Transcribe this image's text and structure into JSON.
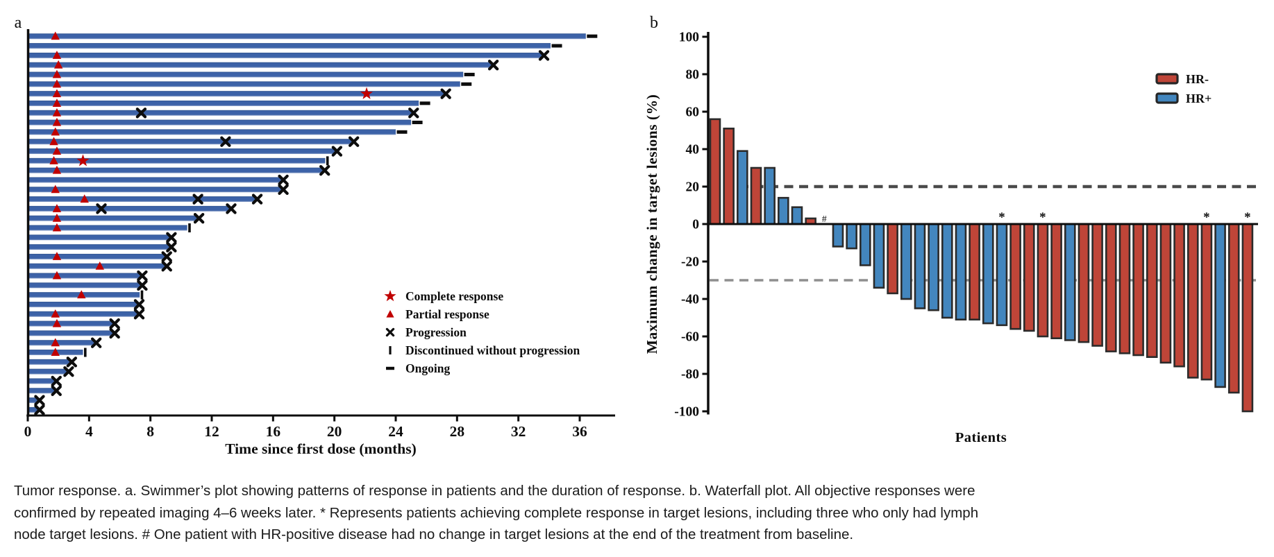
{
  "figure": {
    "panel_a_label": "a",
    "panel_b_label": "b"
  },
  "chart_data": [
    {
      "type": "bar",
      "subtype": "swimmer",
      "panel_label": "a",
      "xlabel": "Time since first dose (months)",
      "x_ticks": [
        0,
        4,
        8,
        12,
        16,
        20,
        24,
        28,
        32,
        36
      ],
      "xlim": [
        0,
        38
      ],
      "bar_color": "#3b61a6",
      "marker_color": "#c00000",
      "legend": [
        {
          "marker": "star",
          "label": "Complete response"
        },
        {
          "marker": "triangle",
          "label": "Partial response"
        },
        {
          "marker": "x",
          "label": "Progression"
        },
        {
          "marker": "bar",
          "label": "Discontinued without progression"
        },
        {
          "marker": "dash",
          "label": "Ongoing"
        }
      ],
      "patients": [
        {
          "end": 36.4,
          "tri": 1.8,
          "endm": "dash"
        },
        {
          "end": 34.1,
          "endm": "dash"
        },
        {
          "end": 33.6,
          "tri": 1.9,
          "endm": "x"
        },
        {
          "end": 30.3,
          "tri": 2.0,
          "endm": "x"
        },
        {
          "end": 28.4,
          "tri": 1.9,
          "endm": "dash"
        },
        {
          "end": 28.2,
          "tri": 1.9,
          "endm": "dash"
        },
        {
          "end": 27.2,
          "tri": 1.9,
          "star": 22.1,
          "endm": "x"
        },
        {
          "end": 25.5,
          "tri": 1.9,
          "endm": "dash"
        },
        {
          "end": 25.1,
          "tri": 1.9,
          "xs": [
            7.4
          ],
          "endm": "x"
        },
        {
          "end": 25.0,
          "tri": 1.9,
          "endm": "dash"
        },
        {
          "end": 24.0,
          "tri": 1.8,
          "endm": "dash"
        },
        {
          "end": 21.2,
          "tri": 1.7,
          "xs": [
            12.9
          ],
          "endm": "x"
        },
        {
          "end": 20.1,
          "tri": 1.9,
          "endm": "x"
        },
        {
          "end": 19.4,
          "tri": 1.7,
          "star": 3.6,
          "endm": "bar"
        },
        {
          "end": 19.3,
          "tri": 1.9,
          "endm": "x"
        },
        {
          "end": 16.6,
          "endm": "x"
        },
        {
          "end": 16.6,
          "tri": 1.8,
          "endm": "x"
        },
        {
          "end": 14.9,
          "tri": 3.7,
          "xs": [
            11.1
          ],
          "endm": "x"
        },
        {
          "end": 13.2,
          "tri": 1.9,
          "xs": [
            4.8
          ],
          "endm": "x"
        },
        {
          "end": 11.1,
          "tri": 1.9,
          "endm": "x"
        },
        {
          "end": 10.4,
          "tri": 1.9,
          "endm": "bar"
        },
        {
          "end": 9.3,
          "endm": "x"
        },
        {
          "end": 9.3,
          "endm": "x"
        },
        {
          "end": 9.0,
          "tri": 1.9,
          "endm": "x"
        },
        {
          "end": 9.0,
          "tri": 4.7,
          "endm": "x"
        },
        {
          "end": 7.4,
          "tri": 1.9,
          "endm": "x"
        },
        {
          "end": 7.4,
          "endm": "x"
        },
        {
          "end": 7.3,
          "tri": 3.5,
          "endm": "bar"
        },
        {
          "end": 7.2,
          "endm": "x"
        },
        {
          "end": 7.2,
          "tri": 1.8,
          "endm": "x"
        },
        {
          "end": 5.6,
          "tri": 1.9,
          "endm": "x"
        },
        {
          "end": 5.6,
          "endm": "x"
        },
        {
          "end": 4.4,
          "tri": 1.8,
          "endm": "x"
        },
        {
          "end": 3.6,
          "tri": 1.8,
          "endm": "bar"
        },
        {
          "end": 2.8,
          "endm": "x"
        },
        {
          "end": 2.6,
          "endm": "x"
        },
        {
          "end": 1.8,
          "endm": "x"
        },
        {
          "end": 1.8,
          "endm": "x"
        },
        {
          "end": 0.7,
          "endm": "x"
        },
        {
          "end": 0.7,
          "endm": "x"
        }
      ]
    },
    {
      "type": "bar",
      "subtype": "waterfall",
      "panel_label": "b",
      "ylabel": "Maximum change in target lesions (%)",
      "xlabel": "Patients",
      "y_ticks": [
        100,
        80,
        60,
        40,
        20,
        0,
        -20,
        -40,
        -60,
        -80,
        -100
      ],
      "ylim": [
        -100,
        100
      ],
      "reference_lines": [
        20,
        -30
      ],
      "groups": {
        "HR-": "#bf4538",
        "HR+": "#4386be"
      },
      "legend": [
        {
          "label": "HR-",
          "color": "#bf4538"
        },
        {
          "label": "HR+",
          "color": "#4386be"
        }
      ],
      "patients": [
        {
          "value": 56,
          "group": "HR-"
        },
        {
          "value": 51,
          "group": "HR-"
        },
        {
          "value": 39,
          "group": "HR+"
        },
        {
          "value": 30,
          "group": "HR-"
        },
        {
          "value": 30,
          "group": "HR+"
        },
        {
          "value": 14,
          "group": "HR+"
        },
        {
          "value": 9,
          "group": "HR+"
        },
        {
          "value": 3,
          "group": "HR-"
        },
        {
          "value": 0,
          "group": "HR+",
          "note": "#"
        },
        {
          "value": -12,
          "group": "HR+"
        },
        {
          "value": -13,
          "group": "HR+"
        },
        {
          "value": -22,
          "group": "HR+"
        },
        {
          "value": -34,
          "group": "HR+"
        },
        {
          "value": -37,
          "group": "HR-"
        },
        {
          "value": -40,
          "group": "HR+"
        },
        {
          "value": -45,
          "group": "HR+"
        },
        {
          "value": -46,
          "group": "HR+"
        },
        {
          "value": -50,
          "group": "HR+"
        },
        {
          "value": -51,
          "group": "HR+"
        },
        {
          "value": -51,
          "group": "HR-"
        },
        {
          "value": -53,
          "group": "HR+"
        },
        {
          "value": -54,
          "group": "HR+",
          "note": "*"
        },
        {
          "value": -56,
          "group": "HR-"
        },
        {
          "value": -57,
          "group": "HR-"
        },
        {
          "value": -60,
          "group": "HR-",
          "note": "*"
        },
        {
          "value": -61,
          "group": "HR-"
        },
        {
          "value": -62,
          "group": "HR+"
        },
        {
          "value": -63,
          "group": "HR-"
        },
        {
          "value": -65,
          "group": "HR-"
        },
        {
          "value": -68,
          "group": "HR-"
        },
        {
          "value": -69,
          "group": "HR-"
        },
        {
          "value": -70,
          "group": "HR-"
        },
        {
          "value": -71,
          "group": "HR-"
        },
        {
          "value": -74,
          "group": "HR-"
        },
        {
          "value": -76,
          "group": "HR-"
        },
        {
          "value": -82,
          "group": "HR-"
        },
        {
          "value": -83,
          "group": "HR-",
          "note": "*"
        },
        {
          "value": -87,
          "group": "HR+"
        },
        {
          "value": -90,
          "group": "HR-"
        },
        {
          "value": -100,
          "group": "HR-",
          "note": "*"
        }
      ]
    }
  ],
  "caption": {
    "lines": [
      "Tumor response. a. Swimmer’s plot showing patterns of response in patients and the duration of response. b. Waterfall plot. All objective responses were",
      "confirmed by repeated imaging 4–6 weeks later. * Represents patients achieving complete response in target lesions, including three who only had lymph",
      "node target lesions. # One patient with HR-positive disease had no change in target lesions at the end of the treatment from baseline."
    ]
  }
}
